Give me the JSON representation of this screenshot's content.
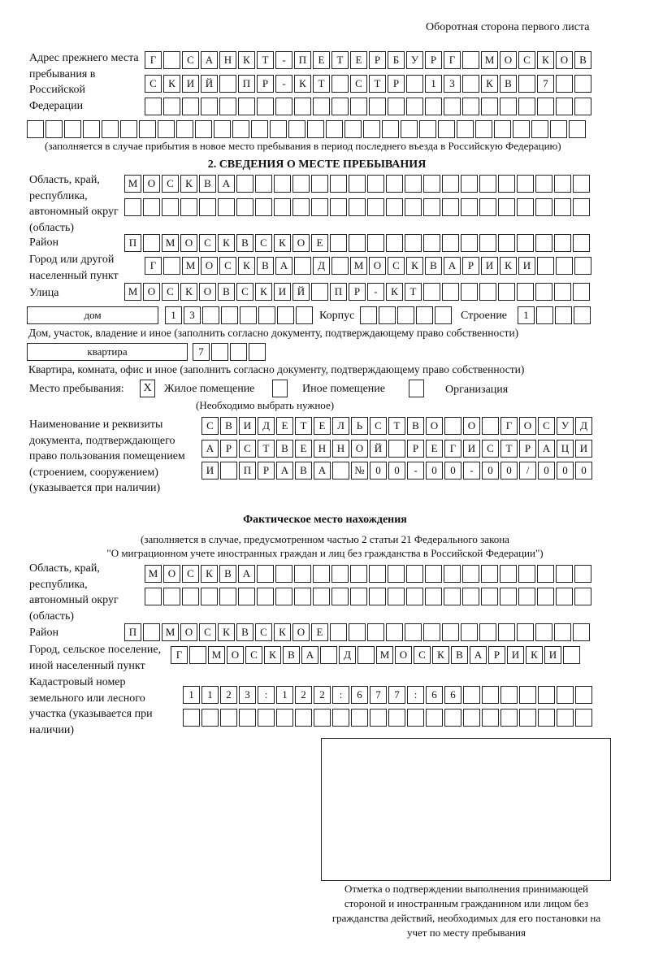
{
  "header": "Оборотная сторона первого листа",
  "prev_address": {
    "label": "Адрес прежнего места пребывания в Российской Федерации",
    "rows": [
      "Г САНКТ-ПЕТЕРБУРГ МОСКОВ",
      "СКИЙ ПР-КТ СТР 13 КВ 7  ",
      "                        ",
      "                              "
    ],
    "note": "(заполняется в случае прибытия в новое место пребывания в период последнего въезда в Российскую Федерацию)"
  },
  "section2": {
    "title": "2. СВЕДЕНИЯ О МЕСТЕ ПРЕБЫВАНИЯ",
    "region_label": "Область, край, республика, автономный округ (область)",
    "region_rows": [
      "МОСКВА                   ",
      "                         "
    ],
    "district_label": "Район",
    "district_row": "П МОСКВСКОЕ              ",
    "city_label": "Город или другой населенный пункт",
    "city_row": "Г МОСКВА Д МОСКВАРИКИ   ",
    "street_label": "Улица",
    "street_row": "МОСКОВСКИЙ ПР-КТ         ",
    "house_type": "дом",
    "house_cells": "13      ",
    "korpus_label": "Корпус",
    "korpus_cells": "     ",
    "stroenie_label": "Строение",
    "stroenie_cells": "1   ",
    "house_note": "Дом, участок, владение и иное (заполнить согласно документу, подтверждающему право собственности)",
    "flat_type": "квартира",
    "flat_cells": "7   ",
    "flat_note": "Квартира, комната, офис и иное (заполнить согласно документу, подтверждающему право собственности)",
    "stay_label": "Место пребывания:",
    "stay_options": [
      {
        "label": "Жилое помещение",
        "mark": "X"
      },
      {
        "label": "Иное помещение",
        "mark": ""
      },
      {
        "label": "Организация",
        "mark": ""
      }
    ],
    "stay_note": "(Необходимо выбрать нужное)",
    "doc_label": "Наименование и реквизиты документа, подтверждающего право пользования помещением (строением, сооружением) (указывается при наличии)",
    "doc_rows": [
      "СВИДЕТЕЛЬСТВО О ГОСУД",
      "АРСТВЕННОЙ РЕГИСТРАЦИ",
      "И ПРАВА №00-00-00/000"
    ]
  },
  "actual": {
    "title": "Фактическое место нахождения",
    "note1": "(заполняется в случае, предусмотренном частью 2 статьи 21 Федерального закона",
    "note2": "\"О миграционном учете иностранных граждан и лиц без гражданства в Российской Федерации\")",
    "region_label": "Область, край, республика, автономный округ (область)",
    "region_rows": [
      "МОСКВА                  ",
      "                        "
    ],
    "district_label": "Район",
    "district_row": "П МОСКВСКОЕ              ",
    "city_label": "Город, сельское поселение, иной населенный пункт",
    "city_row": "Г МОСКВА Д МОСКВАРИКИ ",
    "cadastre_label": "Кадастровый номер земельного или лесного участка (указывается при наличии)",
    "cadastre_rows": [
      "1123:122:677:66       ",
      "                      "
    ]
  },
  "stamp_caption": "Отметка о подтверждении выполнения принимающей стороной и иностранным гражданином или лицом без гражданства действий, необходимых для его постановки на учет по месту пребывания"
}
